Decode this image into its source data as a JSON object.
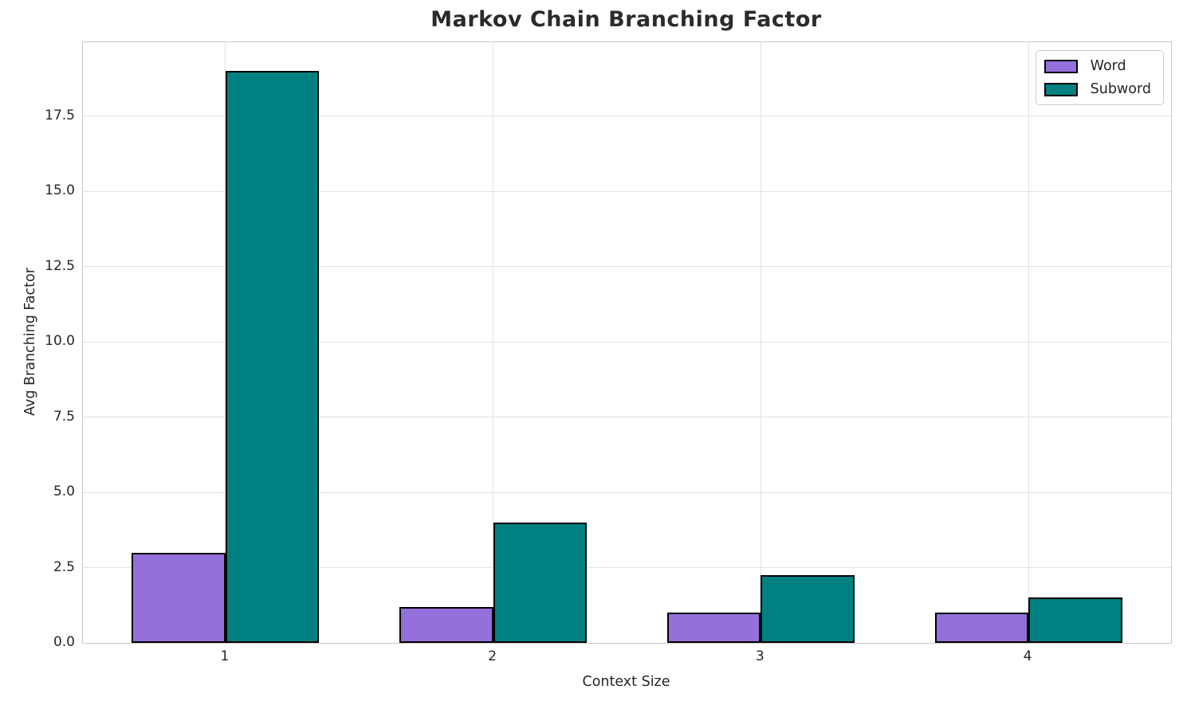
{
  "chart_data": {
    "type": "bar",
    "title": "Markov Chain Branching Factor",
    "xlabel": "Context Size",
    "ylabel": "Avg Branching Factor",
    "categories": [
      "1",
      "2",
      "3",
      "4"
    ],
    "series": [
      {
        "name": "Word",
        "color": "#9370db",
        "values": [
          3.0,
          1.2,
          1.0,
          1.0
        ]
      },
      {
        "name": "Subword",
        "color": "#008080",
        "values": [
          19.0,
          4.0,
          2.25,
          1.5
        ]
      }
    ],
    "ylim": [
      0,
      19.95
    ],
    "yticks": [
      0.0,
      2.5,
      5.0,
      7.5,
      10.0,
      12.5,
      15.0,
      17.5
    ],
    "ytick_labels": [
      "0.0",
      "2.5",
      "5.0",
      "7.5",
      "10.0",
      "12.5",
      "15.0",
      "17.5"
    ],
    "grid": true,
    "legend_position": "upper right",
    "bar_edge_color": "#000000",
    "colors": {
      "title": "#2b2b2b",
      "tick_label": "#262626",
      "grid": "#e2e2e2",
      "spine": "#c9c9c9"
    }
  }
}
